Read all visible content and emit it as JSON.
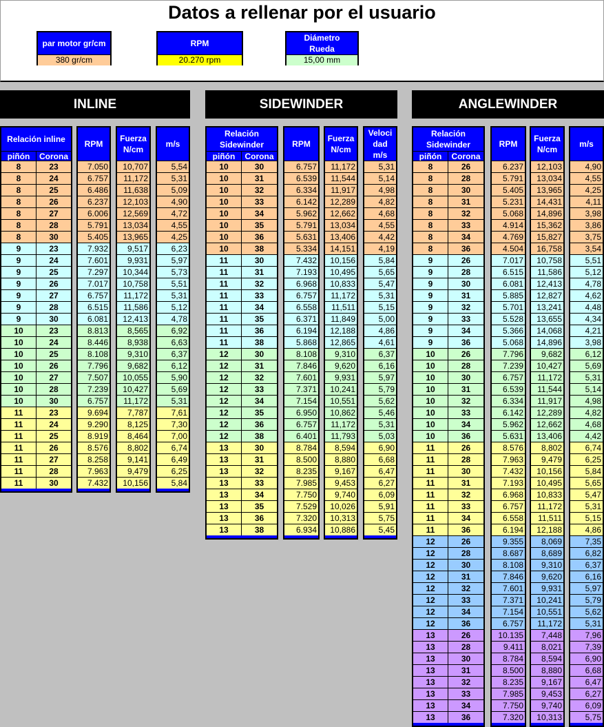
{
  "header": {
    "title": "Datos a rellenar por el usuario",
    "inputs": [
      {
        "label": "par motor gr/cm",
        "value": "380 gr/cm",
        "color": "#FFCC99"
      },
      {
        "label": "RPM",
        "value": "20.270 rpm",
        "color": "#FFFF00"
      },
      {
        "label": "Diámetro Rueda",
        "value": "15,00 mm",
        "color": "#CCFFCC"
      }
    ]
  },
  "colors": {
    "header_blue": "#0000FF",
    "group_colors": {
      "8": "#FFCC99",
      "9": "#CCFFFF",
      "10": "#CCFFCC",
      "11": "#FFFF99",
      "12": "#99CCFF",
      "13": "#CC99FF"
    },
    "side_colors": {
      "10": "#FFCC99",
      "11": "#CCFFFF",
      "12": "#CCFFCC",
      "13": "#FFFF99"
    }
  },
  "tables": [
    {
      "title": "INLINE",
      "relation_label": "Relación inline",
      "columns": [
        "piñón",
        "Corona",
        "RPM",
        "Fuerza N/cm",
        "m/s"
      ],
      "rows": [
        [
          "8",
          "23",
          "7.050",
          "10,707",
          "5,54"
        ],
        [
          "8",
          "24",
          "6.757",
          "11,172",
          "5,31"
        ],
        [
          "8",
          "25",
          "6.486",
          "11,638",
          "5,09"
        ],
        [
          "8",
          "26",
          "6.237",
          "12,103",
          "4,90"
        ],
        [
          "8",
          "27",
          "6.006",
          "12,569",
          "4,72"
        ],
        [
          "8",
          "28",
          "5.791",
          "13,034",
          "4,55"
        ],
        [
          "8",
          "30",
          "5.405",
          "13,965",
          "4,25"
        ],
        [
          "9",
          "23",
          "7.932",
          "9,517",
          "6,23"
        ],
        [
          "9",
          "24",
          "7.601",
          "9,931",
          "5,97"
        ],
        [
          "9",
          "25",
          "7.297",
          "10,344",
          "5,73"
        ],
        [
          "9",
          "26",
          "7.017",
          "10,758",
          "5,51"
        ],
        [
          "9",
          "27",
          "6.757",
          "11,172",
          "5,31"
        ],
        [
          "9",
          "28",
          "6.515",
          "11,586",
          "5,12"
        ],
        [
          "9",
          "30",
          "6.081",
          "12,413",
          "4,78"
        ],
        [
          "10",
          "23",
          "8.813",
          "8,565",
          "6,92"
        ],
        [
          "10",
          "24",
          "8.446",
          "8,938",
          "6,63"
        ],
        [
          "10",
          "25",
          "8.108",
          "9,310",
          "6,37"
        ],
        [
          "10",
          "26",
          "7.796",
          "9,682",
          "6,12"
        ],
        [
          "10",
          "27",
          "7.507",
          "10,055",
          "5,90"
        ],
        [
          "10",
          "28",
          "7.239",
          "10,427",
          "5,69"
        ],
        [
          "10",
          "30",
          "6.757",
          "11,172",
          "5,31"
        ],
        [
          "11",
          "23",
          "9.694",
          "7,787",
          "7,61"
        ],
        [
          "11",
          "24",
          "9.290",
          "8,125",
          "7,30"
        ],
        [
          "11",
          "25",
          "8.919",
          "8,464",
          "7,00"
        ],
        [
          "11",
          "26",
          "8.576",
          "8,802",
          "6,74"
        ],
        [
          "11",
          "27",
          "8.258",
          "9,141",
          "6,49"
        ],
        [
          "11",
          "28",
          "7.963",
          "9,479",
          "6,25"
        ],
        [
          "11",
          "30",
          "7.432",
          "10,156",
          "5,84"
        ]
      ]
    },
    {
      "title": "SIDEWINDER",
      "relation_label": "Relación Sidewinder",
      "columns": [
        "piñón",
        "Corona",
        "RPM",
        "Fuerza N/cm",
        "Veloci dad m/s"
      ],
      "rows": [
        [
          "10",
          "30",
          "6.757",
          "11,172",
          "5,31"
        ],
        [
          "10",
          "31",
          "6.539",
          "11,544",
          "5,14"
        ],
        [
          "10",
          "32",
          "6.334",
          "11,917",
          "4,98"
        ],
        [
          "10",
          "33",
          "6.142",
          "12,289",
          "4,82"
        ],
        [
          "10",
          "34",
          "5.962",
          "12,662",
          "4,68"
        ],
        [
          "10",
          "35",
          "5.791",
          "13,034",
          "4,55"
        ],
        [
          "10",
          "36",
          "5.631",
          "13,406",
          "4,42"
        ],
        [
          "10",
          "38",
          "5.334",
          "14,151",
          "4,19"
        ],
        [
          "11",
          "30",
          "7.432",
          "10,156",
          "5,84"
        ],
        [
          "11",
          "31",
          "7.193",
          "10,495",
          "5,65"
        ],
        [
          "11",
          "32",
          "6.968",
          "10,833",
          "5,47"
        ],
        [
          "11",
          "33",
          "6.757",
          "11,172",
          "5,31"
        ],
        [
          "11",
          "34",
          "6.558",
          "11,511",
          "5,15"
        ],
        [
          "11",
          "35",
          "6.371",
          "11,849",
          "5,00"
        ],
        [
          "11",
          "36",
          "6.194",
          "12,188",
          "4,86"
        ],
        [
          "11",
          "38",
          "5.868",
          "12,865",
          "4,61"
        ],
        [
          "12",
          "30",
          "8.108",
          "9,310",
          "6,37"
        ],
        [
          "12",
          "31",
          "7.846",
          "9,620",
          "6,16"
        ],
        [
          "12",
          "32",
          "7.601",
          "9,931",
          "5,97"
        ],
        [
          "12",
          "33",
          "7.371",
          "10,241",
          "5,79"
        ],
        [
          "12",
          "34",
          "7.154",
          "10,551",
          "5,62"
        ],
        [
          "12",
          "35",
          "6.950",
          "10,862",
          "5,46"
        ],
        [
          "12",
          "36",
          "6.757",
          "11,172",
          "5,31"
        ],
        [
          "12",
          "38",
          "6.401",
          "11,793",
          "5,03"
        ],
        [
          "13",
          "30",
          "8.784",
          "8,594",
          "6,90"
        ],
        [
          "13",
          "31",
          "8.500",
          "8,880",
          "6,68"
        ],
        [
          "13",
          "32",
          "8.235",
          "9,167",
          "6,47"
        ],
        [
          "13",
          "33",
          "7.985",
          "9,453",
          "6,27"
        ],
        [
          "13",
          "34",
          "7.750",
          "9,740",
          "6,09"
        ],
        [
          "13",
          "35",
          "7.529",
          "10,026",
          "5,91"
        ],
        [
          "13",
          "36",
          "7.320",
          "10,313",
          "5,75"
        ],
        [
          "13",
          "38",
          "6.934",
          "10,886",
          "5,45"
        ]
      ]
    },
    {
      "title": "ANGLEWINDER",
      "relation_label": "Relación Sidewinder",
      "columns": [
        "piñón",
        "Corona",
        "RPM",
        "Fuerza N/cm",
        "m/s"
      ],
      "rows": [
        [
          "8",
          "26",
          "6.237",
          "12,103",
          "4,90"
        ],
        [
          "8",
          "28",
          "5.791",
          "13,034",
          "4,55"
        ],
        [
          "8",
          "30",
          "5.405",
          "13,965",
          "4,25"
        ],
        [
          "8",
          "31",
          "5.231",
          "14,431",
          "4,11"
        ],
        [
          "8",
          "32",
          "5.068",
          "14,896",
          "3,98"
        ],
        [
          "8",
          "33",
          "4.914",
          "15,362",
          "3,86"
        ],
        [
          "8",
          "34",
          "4.769",
          "15,827",
          "3,75"
        ],
        [
          "8",
          "36",
          "4.504",
          "16,758",
          "3,54"
        ],
        [
          "9",
          "26",
          "7.017",
          "10,758",
          "5,51"
        ],
        [
          "9",
          "28",
          "6.515",
          "11,586",
          "5,12"
        ],
        [
          "9",
          "30",
          "6.081",
          "12,413",
          "4,78"
        ],
        [
          "9",
          "31",
          "5.885",
          "12,827",
          "4,62"
        ],
        [
          "9",
          "32",
          "5.701",
          "13,241",
          "4,48"
        ],
        [
          "9",
          "33",
          "5.528",
          "13,655",
          "4,34"
        ],
        [
          "9",
          "34",
          "5.366",
          "14,068",
          "4,21"
        ],
        [
          "9",
          "36",
          "5.068",
          "14,896",
          "3,98"
        ],
        [
          "10",
          "26",
          "7.796",
          "9,682",
          "6,12"
        ],
        [
          "10",
          "28",
          "7.239",
          "10,427",
          "5,69"
        ],
        [
          "10",
          "30",
          "6.757",
          "11,172",
          "5,31"
        ],
        [
          "10",
          "31",
          "6.539",
          "11,544",
          "5,14"
        ],
        [
          "10",
          "32",
          "6.334",
          "11,917",
          "4,98"
        ],
        [
          "10",
          "33",
          "6.142",
          "12,289",
          "4,82"
        ],
        [
          "10",
          "34",
          "5.962",
          "12,662",
          "4,68"
        ],
        [
          "10",
          "36",
          "5.631",
          "13,406",
          "4,42"
        ],
        [
          "11",
          "26",
          "8.576",
          "8,802",
          "6,74"
        ],
        [
          "11",
          "28",
          "7.963",
          "9,479",
          "6,25"
        ],
        [
          "11",
          "30",
          "7.432",
          "10,156",
          "5,84"
        ],
        [
          "11",
          "31",
          "7.193",
          "10,495",
          "5,65"
        ],
        [
          "11",
          "32",
          "6.968",
          "10,833",
          "5,47"
        ],
        [
          "11",
          "33",
          "6.757",
          "11,172",
          "5,31"
        ],
        [
          "11",
          "34",
          "6.558",
          "11,511",
          "5,15"
        ],
        [
          "11",
          "36",
          "6.194",
          "12,188",
          "4,86"
        ],
        [
          "12",
          "26",
          "9.355",
          "8,069",
          "7,35"
        ],
        [
          "12",
          "28",
          "8.687",
          "8,689",
          "6,82"
        ],
        [
          "12",
          "30",
          "8.108",
          "9,310",
          "6,37"
        ],
        [
          "12",
          "31",
          "7.846",
          "9,620",
          "6,16"
        ],
        [
          "12",
          "32",
          "7.601",
          "9,931",
          "5,97"
        ],
        [
          "12",
          "33",
          "7.371",
          "10,241",
          "5,79"
        ],
        [
          "12",
          "34",
          "7.154",
          "10,551",
          "5,62"
        ],
        [
          "12",
          "36",
          "6.757",
          "11,172",
          "5,31"
        ],
        [
          "13",
          "26",
          "10.135",
          "7,448",
          "7,96"
        ],
        [
          "13",
          "28",
          "9.411",
          "8,021",
          "7,39"
        ],
        [
          "13",
          "30",
          "8.784",
          "8,594",
          "6,90"
        ],
        [
          "13",
          "31",
          "8.500",
          "8,880",
          "6,68"
        ],
        [
          "13",
          "32",
          "8.235",
          "9,167",
          "6,47"
        ],
        [
          "13",
          "33",
          "7.985",
          "9,453",
          "6,27"
        ],
        [
          "13",
          "34",
          "7.750",
          "9,740",
          "6,09"
        ],
        [
          "13",
          "36",
          "7.320",
          "10,313",
          "5,75"
        ]
      ]
    }
  ]
}
